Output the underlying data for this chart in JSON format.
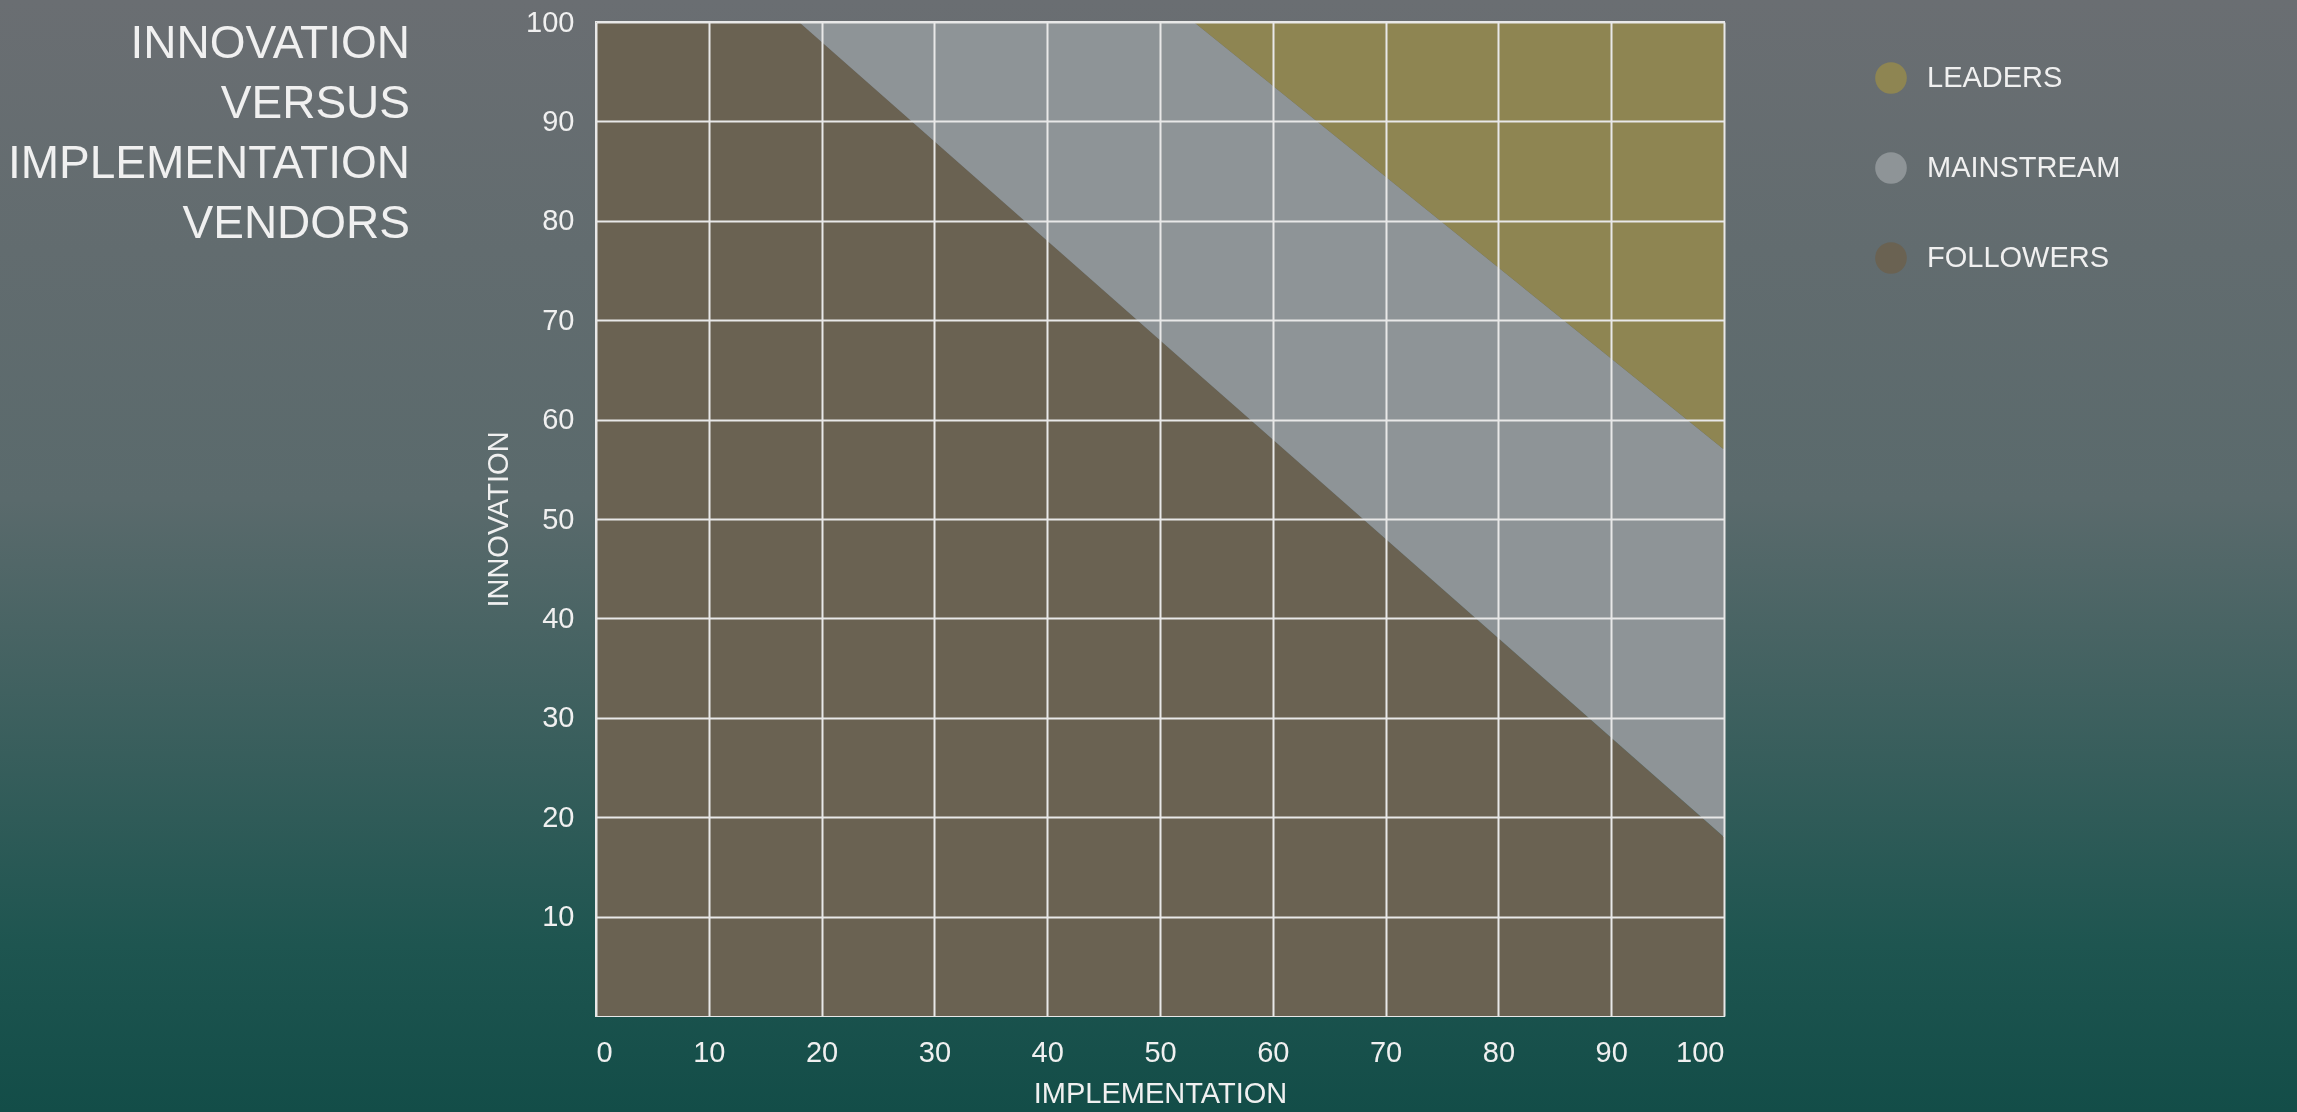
{
  "chart_data": {
    "type": "area",
    "title": "INNOVATION VERSUS IMPLEMENTATION VENDORS",
    "xlabel": "IMPLEMENTATION",
    "ylabel": "INNOVATION",
    "stacked": true,
    "x": [
      0,
      18,
      53,
      100
    ],
    "series": [
      {
        "name": "FOLLOWERS",
        "color": "#6a6252",
        "values": [
          100,
          100,
          65,
          18
        ]
      },
      {
        "name": "MAINSTREAM",
        "color": "#8e9497",
        "values": [
          0,
          0,
          35,
          39
        ]
      },
      {
        "name": "LEADERS",
        "color": "#8e8552",
        "values": [
          0,
          0,
          0,
          43
        ]
      }
    ],
    "xlim": [
      0,
      100
    ],
    "xticks": [
      0,
      10,
      20,
      30,
      40,
      50,
      60,
      70,
      80,
      90,
      100
    ],
    "ylim": [
      0,
      100
    ],
    "yticks": [
      10,
      20,
      30,
      40,
      50,
      60,
      70,
      80,
      90,
      100
    ],
    "grid": true,
    "legend": "top right"
  }
}
